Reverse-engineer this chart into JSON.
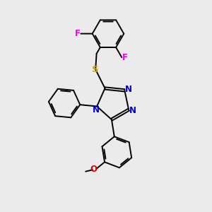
{
  "bg_color": "#ebebeb",
  "bond_color": "#000000",
  "bond_width": 1.4,
  "dbo": 0.055,
  "N_color": "#0000cc",
  "S_color": "#ccaa00",
  "O_color": "#dd0000",
  "F_color": "#ee00ee",
  "font_size": 8.5,
  "xlim": [
    0,
    10
  ],
  "ylim": [
    0,
    10
  ]
}
